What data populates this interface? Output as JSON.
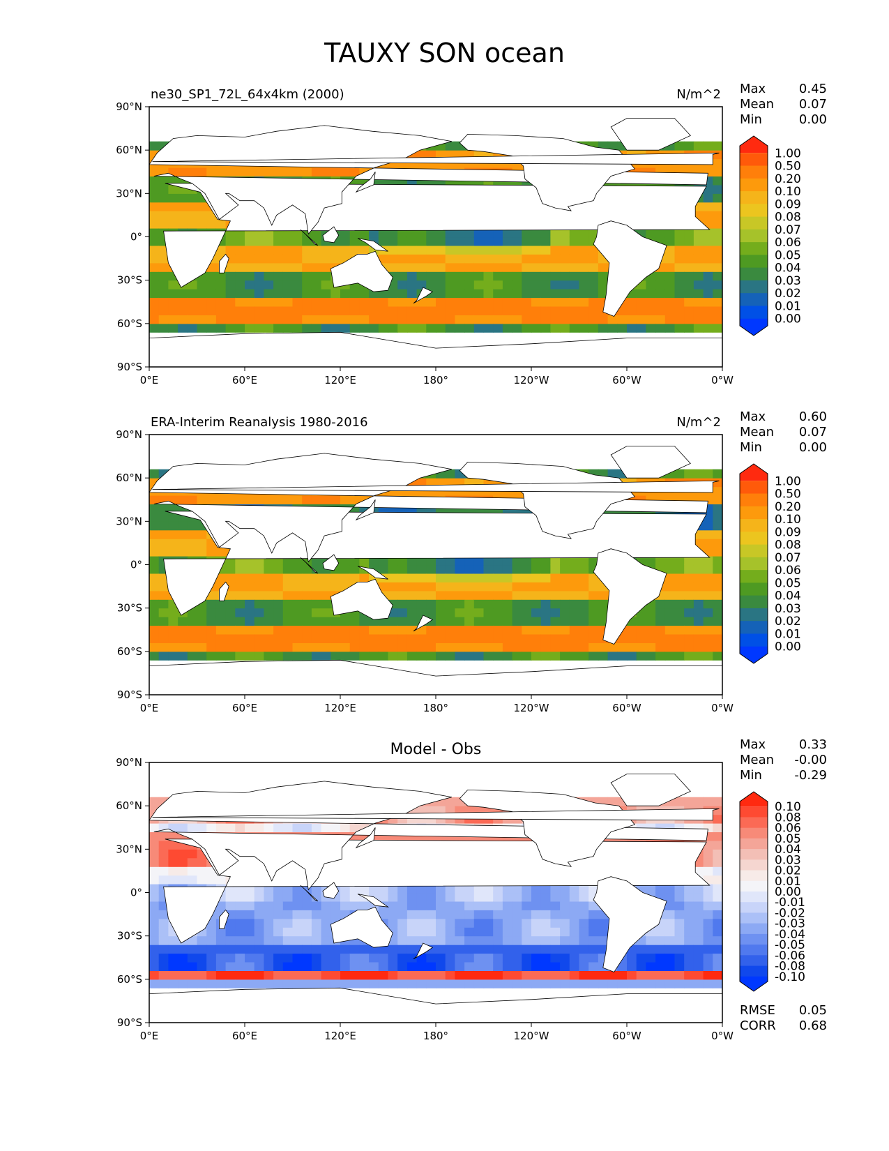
{
  "figure_title": "TAUXY SON ocean",
  "chart_data": [
    {
      "type": "heatmap",
      "title_left": "ne30_SP1_72L_64x4km (2000)",
      "title_right": "N/m^2",
      "stats": [
        {
          "label": "Max",
          "value": "0.45"
        },
        {
          "label": "Mean",
          "value": "0.07"
        },
        {
          "label": "Min",
          "value": "0.00"
        }
      ],
      "xticks": [
        "0°E",
        "60°E",
        "120°E",
        "180°",
        "120°W",
        "60°W",
        "0°W"
      ],
      "yticks": [
        "90°N",
        "60°N",
        "30°N",
        "0°",
        "30°S",
        "60°S",
        "90°S"
      ],
      "xlim": [
        0,
        360
      ],
      "ylim": [
        -90,
        90
      ],
      "colorbar_levels": [
        "1.00",
        "0.50",
        "0.20",
        "0.10",
        "0.09",
        "0.08",
        "0.07",
        "0.06",
        "0.05",
        "0.04",
        "0.03",
        "0.02",
        "0.01",
        "0.00"
      ],
      "colorbar_colors": [
        "#ff2a0f",
        "#ff5a0a",
        "#ff7f0a",
        "#fd9a0c",
        "#f5b41a",
        "#ecc51f",
        "#c8c726",
        "#a6c22a",
        "#74ad1c",
        "#4e9a22",
        "#3a8a3f",
        "#2a7583",
        "#1562b8",
        "#0050e6",
        "#0038ff"
      ]
    },
    {
      "type": "heatmap",
      "title_left": "ERA-Interim Reanalysis 1980-2016",
      "title_right": "N/m^2",
      "stats": [
        {
          "label": "Max",
          "value": "0.60"
        },
        {
          "label": "Mean",
          "value": "0.07"
        },
        {
          "label": "Min",
          "value": "0.00"
        }
      ],
      "xticks": [
        "0°E",
        "60°E",
        "120°E",
        "180°",
        "120°W",
        "60°W",
        "0°W"
      ],
      "yticks": [
        "90°N",
        "60°N",
        "30°N",
        "0°",
        "30°S",
        "60°S",
        "90°S"
      ],
      "xlim": [
        0,
        360
      ],
      "ylim": [
        -90,
        90
      ],
      "colorbar_levels": [
        "1.00",
        "0.50",
        "0.20",
        "0.10",
        "0.09",
        "0.08",
        "0.07",
        "0.06",
        "0.05",
        "0.04",
        "0.03",
        "0.02",
        "0.01",
        "0.00"
      ],
      "colorbar_colors": [
        "#ff2a0f",
        "#ff5a0a",
        "#ff7f0a",
        "#fd9a0c",
        "#f5b41a",
        "#ecc51f",
        "#c8c726",
        "#a6c22a",
        "#74ad1c",
        "#4e9a22",
        "#3a8a3f",
        "#2a7583",
        "#1562b8",
        "#0050e6",
        "#0038ff"
      ]
    },
    {
      "type": "heatmap",
      "title_center": "Model - Obs",
      "stats": [
        {
          "label": "Max",
          "value": "0.33"
        },
        {
          "label": "Mean",
          "value": "-0.00"
        },
        {
          "label": "Min",
          "value": "-0.29"
        }
      ],
      "xticks": [
        "0°E",
        "60°E",
        "120°E",
        "180°",
        "120°W",
        "60°W",
        "0°W"
      ],
      "yticks": [
        "90°N",
        "60°N",
        "30°N",
        "0°",
        "30°S",
        "60°S",
        "90°S"
      ],
      "xlim": [
        0,
        360
      ],
      "ylim": [
        -90,
        90
      ],
      "colorbar_levels": [
        "0.10",
        "0.08",
        "0.06",
        "0.05",
        "0.04",
        "0.03",
        "0.02",
        "0.01",
        "0.00",
        "-0.01",
        "-0.02",
        "-0.03",
        "-0.04",
        "-0.05",
        "-0.06",
        "-0.08",
        "-0.10"
      ],
      "colorbar_colors": [
        "#ff2a10",
        "#fe4a32",
        "#fb6a55",
        "#f78a78",
        "#f4a598",
        "#f3bfb6",
        "#f5d6d0",
        "#f7ebe8",
        "#f4f4f8",
        "#e0e6fa",
        "#c8d4f9",
        "#abc0f7",
        "#8ca9f4",
        "#6e91f1",
        "#5079ee",
        "#3261eb",
        "#1048ec",
        "#0038ff"
      ],
      "rmse": {
        "label": "RMSE",
        "value": "0.05"
      },
      "corr": {
        "label": "CORR",
        "value": "0.68"
      }
    }
  ]
}
